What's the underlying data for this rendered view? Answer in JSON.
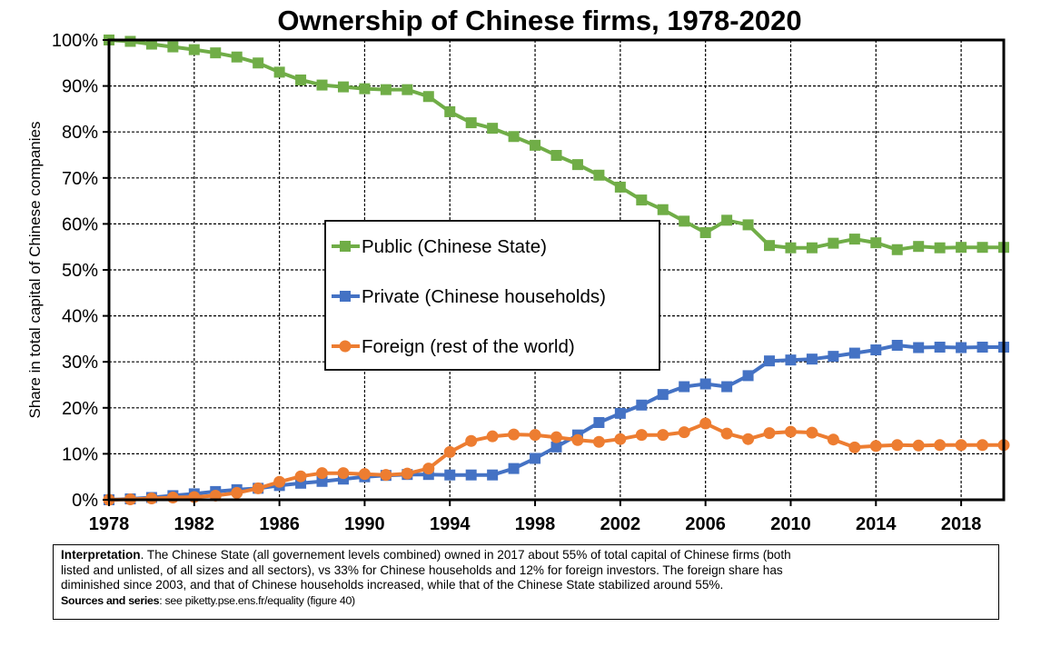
{
  "chart_data": {
    "type": "line",
    "title": "Ownership of Chinese firms, 1978-2020",
    "ylabel": "Share in total capital of Chinese companies",
    "xlabel": "",
    "xlim": [
      1978,
      2020
    ],
    "ylim": [
      0,
      100
    ],
    "x_ticks": [
      1978,
      1982,
      1986,
      1990,
      1994,
      1998,
      2002,
      2006,
      2010,
      2014,
      2018
    ],
    "y_ticks": [
      "0%",
      "10%",
      "20%",
      "30%",
      "40%",
      "50%",
      "60%",
      "70%",
      "80%",
      "90%",
      "100%"
    ],
    "grid": true,
    "legend_position": "center-left",
    "x": [
      1978,
      1979,
      1980,
      1981,
      1982,
      1983,
      1984,
      1985,
      1986,
      1987,
      1988,
      1989,
      1990,
      1991,
      1992,
      1993,
      1994,
      1995,
      1996,
      1997,
      1998,
      1999,
      2000,
      2001,
      2002,
      2003,
      2004,
      2005,
      2006,
      2007,
      2008,
      2009,
      2010,
      2011,
      2012,
      2013,
      2014,
      2015,
      2016,
      2017,
      2018,
      2019,
      2020
    ],
    "series": [
      {
        "name": "Public (Chinese State)",
        "color": "#70ad47",
        "marker": "square",
        "values": [
          100,
          99.7,
          99.1,
          98.5,
          97.9,
          97.2,
          96.3,
          95,
          93,
          91.3,
          90.2,
          89.8,
          89.4,
          89.2,
          89.2,
          87.7,
          84.4,
          82,
          80.8,
          79,
          77.1,
          74.9,
          72.9,
          70.6,
          68,
          65.2,
          63.1,
          60.6,
          58.1,
          60.8,
          59.8,
          55.3,
          54.8,
          54.8,
          55.8,
          56.7,
          55.9,
          54.4,
          55.1,
          54.8,
          54.9,
          54.9,
          54.9
        ]
      },
      {
        "name": "Private (Chinese households)",
        "color": "#4472c4",
        "marker": "square",
        "values": [
          0,
          0.2,
          0.5,
          0.9,
          1.3,
          1.8,
          2.2,
          2.5,
          3.1,
          3.6,
          4.0,
          4.5,
          5.0,
          5.3,
          5.5,
          5.5,
          5.4,
          5.4,
          5.4,
          6.8,
          9.0,
          11.5,
          14.1,
          16.8,
          18.8,
          20.6,
          22.9,
          24.6,
          25.2,
          24.6,
          27.0,
          30.2,
          30.4,
          30.6,
          31.2,
          31.9,
          32.6,
          33.6,
          33.1,
          33.2,
          33.1,
          33.2,
          33.2
        ]
      },
      {
        "name": "Foreign (rest of the world)",
        "color": "#ed7d31",
        "marker": "circle",
        "values": [
          0,
          0.1,
          0.3,
          0.5,
          0.6,
          0.9,
          1.5,
          2.5,
          3.9,
          5.1,
          5.8,
          5.8,
          5.6,
          5.4,
          5.7,
          6.8,
          10.4,
          12.8,
          13.8,
          14.2,
          14.1,
          13.6,
          13.0,
          12.6,
          13.2,
          14.1,
          14.1,
          14.7,
          16.6,
          14.4,
          13.2,
          14.5,
          14.8,
          14.6,
          13.1,
          11.4,
          11.7,
          11.9,
          11.8,
          11.9,
          11.9,
          11.9,
          11.9
        ]
      }
    ]
  },
  "note": {
    "lead": "Interpretation",
    "line1": ". The Chinese State (all governement levels combined) owned in 2017 about 55% of total capital of Chinese firms (both",
    "line2": "listed and unlisted, of all sizes and all sectors), vs 33% for Chinese households and 12% for foreign investors. The foreign share has",
    "line3": "diminished since 2003, and that of Chinese households increased, while that of the Chinese State stabilized around 55%.",
    "sources_label": "Sources and series",
    "sources_text": ": see piketty.pse.ens.fr/equality (figure 40)"
  }
}
